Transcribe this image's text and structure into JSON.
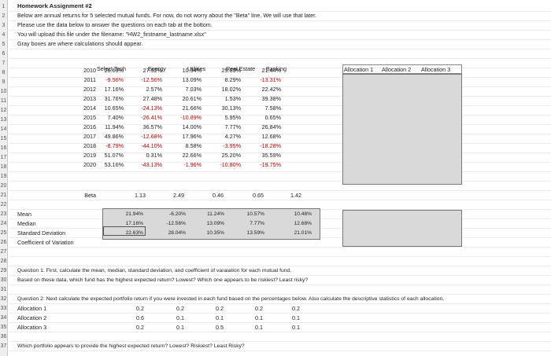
{
  "title_row": "Homework Assignment #2",
  "instructions": [
    "Below are annual returns for 5 selected mutual funds. For now, do not worry about the \"Beta\" line. We will use that later.",
    "Please use the data below to answer the questions on each tab at the bottom.",
    "You will upload this file under the filename: \"HW2_firstname_lastname.xlsx\"",
    "Gray boxes are where calculations should appear."
  ],
  "row_numbers": [
    "1",
    "2",
    "3",
    "4",
    "5",
    "6",
    "7",
    "8",
    "9",
    "10",
    "11",
    "12",
    "13",
    "14",
    "15",
    "16",
    "17",
    "18",
    "19",
    "20",
    "21",
    "22",
    "23",
    "24",
    "25",
    "26",
    "27",
    "28",
    "29",
    "30",
    "31",
    "32",
    "33",
    "34",
    "35",
    "36",
    "37"
  ],
  "fund_headers": [
    "Select Tech",
    "Energy",
    "Utilities",
    "Real Estate",
    "Banking"
  ],
  "allocation_headers": [
    "Allocation 1",
    "Allocation 2",
    "Allocation 3"
  ],
  "years": [
    "2010",
    "2011",
    "2012",
    "2013",
    "2014",
    "2015",
    "2016",
    "2017",
    "2018",
    "2019",
    "2020"
  ],
  "returns": [
    [
      "26.69%",
      "27.92%",
      "10.94%",
      "29.85%",
      "21.44%"
    ],
    [
      "-9.56%",
      "-12.56%",
      "13.09%",
      "8.29%",
      "-13.31%"
    ],
    [
      "17.16%",
      "2.57%",
      "7.03%",
      "18.02%",
      "22.42%"
    ],
    [
      "31.76%",
      "27.48%",
      "20.61%",
      "1.53%",
      "39.38%"
    ],
    [
      "10.65%",
      "-24.13%",
      "21.66%",
      "30.13%",
      "7.58%"
    ],
    [
      "7.40%",
      "-26.41%",
      "-10.89%",
      "5.95%",
      "0.65%"
    ],
    [
      "11.94%",
      "36.57%",
      "14.00%",
      "7.77%",
      "26.84%"
    ],
    [
      "49.86%",
      "-12.68%",
      "17.96%",
      "4.27%",
      "12.68%"
    ],
    [
      "-8.79%",
      "-44.10%",
      "8.58%",
      "-3.95%",
      "-18.28%"
    ],
    [
      "51.07%",
      "0.31%",
      "22.66%",
      "25.20%",
      "35.59%"
    ],
    [
      "53.16%",
      "-43.13%",
      "-1.96%",
      "-10.80%",
      "-19.75%"
    ]
  ],
  "beta_label": "Beta",
  "beta_values": [
    "1.13",
    "2.49",
    "0.46",
    "0.65",
    "1.42"
  ],
  "stat_labels": [
    "Mean",
    "Median",
    "Standard Deviation",
    "Coefficient of Variation"
  ],
  "stats": {
    "mean": [
      "21.94%",
      "-6.20%",
      "11.24%",
      "10.57%",
      "10.48%"
    ],
    "median": [
      "17.16%",
      "-12.56%",
      "13.09%",
      "7.77%",
      "12.68%"
    ],
    "stdev": [
      "22.63%",
      "28.04%",
      "10.35%",
      "13.59%",
      "21.01%"
    ]
  },
  "question1": "Question 1: First, calculate the mean, median, standard deviation, and coefficient of varaiation for each mutual fund.",
  "question1b": "Based on these data, which fund has the highest expected return? Lowest? Which one appears to be riskiest? Least risky?",
  "question2": "Question 2: Next calculate the expected portfolio return if you were invested in each fund based on the percentages below. Also calculate the descriptive statistics of each allocation.",
  "allocations": [
    {
      "label": "Allocation 1",
      "weights": [
        "0.2",
        "0.2",
        "0.2",
        "0.2",
        "0.2"
      ]
    },
    {
      "label": "Allocation 2",
      "weights": [
        "0.6",
        "0.1",
        "0.1",
        "0.1",
        "0.1"
      ]
    },
    {
      "label": "Allocation 3",
      "weights": [
        "0.2",
        "0.1",
        "0.5",
        "0.1",
        "0.1"
      ]
    }
  ],
  "question2b": "Which portfolio appears to provide the highest expected return? Lowest? Riskiest? Least Risky?",
  "colors": {
    "negative": "#c00000",
    "gray_box": "#d9d9d9",
    "gutter": "#eeeeee"
  }
}
